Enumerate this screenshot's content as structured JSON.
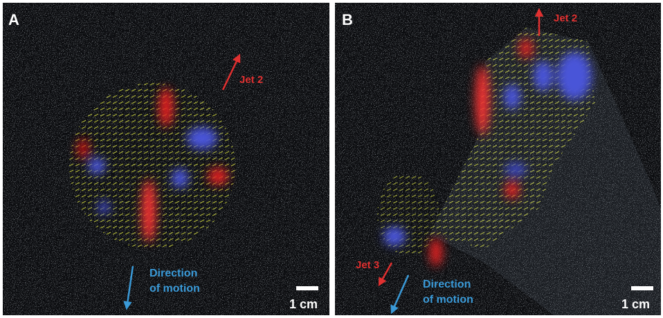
{
  "panels": [
    {
      "label": "A",
      "jet_labels": [
        "Jet 2"
      ],
      "direction": [
        "Direction",
        "of motion"
      ],
      "scale": "1 cm"
    },
    {
      "label": "B",
      "jet_labels": [
        "Jet 2",
        "Jet 3"
      ],
      "direction": [
        "Direction",
        "of motion"
      ],
      "scale": "1 cm"
    }
  ]
}
